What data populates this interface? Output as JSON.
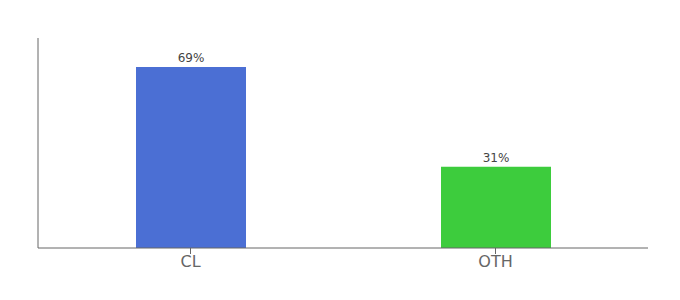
{
  "chart_data": {
    "type": "bar",
    "categories": [
      "CL",
      "OTH"
    ],
    "values": [
      69,
      31
    ],
    "value_labels": [
      "69%",
      "31%"
    ],
    "colors": [
      "#4b6fd4",
      "#3dcc3d"
    ],
    "ylim": [
      0,
      80
    ],
    "yticks": [],
    "grid": false,
    "data_labels": true,
    "tick_labels": "x"
  }
}
